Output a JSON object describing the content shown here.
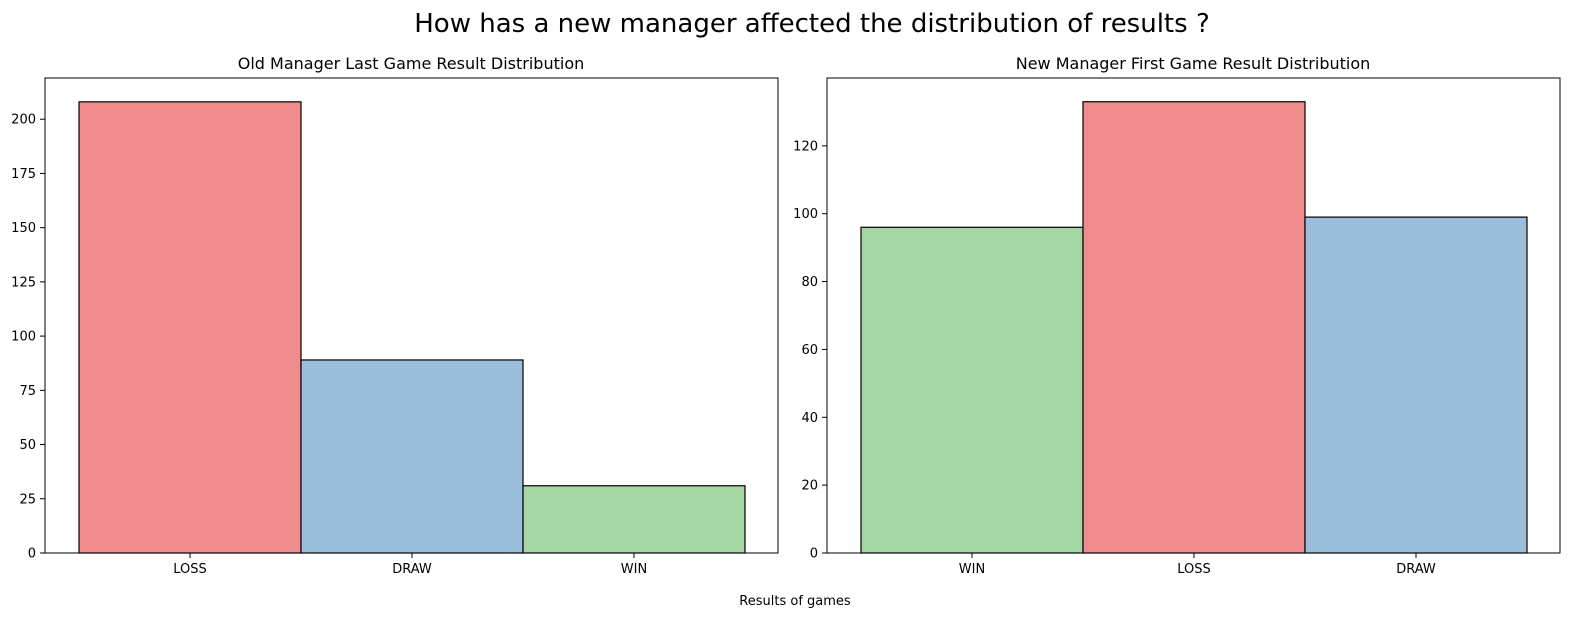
{
  "figure": {
    "title": "How has a new manager affected the distribution of results ?",
    "xlabel": "Results of games"
  },
  "colors": {
    "LOSS": "#f08c8c",
    "DRAW": "#9bbedc",
    "WIN": "#a6d6a3"
  },
  "chart_data": [
    {
      "type": "bar",
      "title": "Old Manager Last Game Result Distribution",
      "categories": [
        "LOSS",
        "DRAW",
        "WIN"
      ],
      "values": [
        208,
        89,
        31
      ],
      "ylim": [
        0,
        219
      ],
      "yticks": [
        0,
        25,
        50,
        75,
        100,
        125,
        150,
        175,
        200
      ],
      "grid": false
    },
    {
      "type": "bar",
      "title": "New Manager First Game Result Distribution",
      "categories": [
        "WIN",
        "LOSS",
        "DRAW"
      ],
      "values": [
        96,
        133,
        99
      ],
      "ylim": [
        0,
        140
      ],
      "yticks": [
        0,
        20,
        40,
        60,
        80,
        100,
        120
      ],
      "grid": false
    }
  ]
}
